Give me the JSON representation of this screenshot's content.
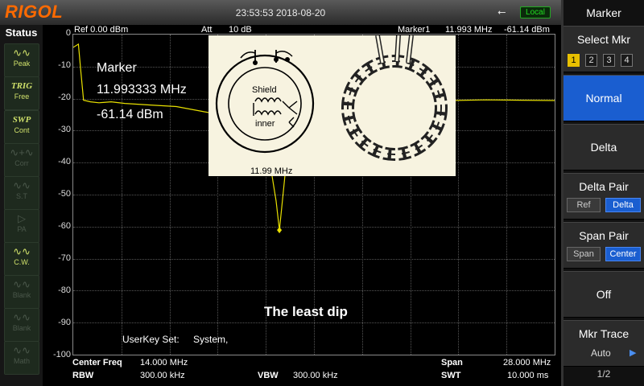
{
  "header": {
    "logo": "RIGOL",
    "datetime": "23:53:53 2018-08-20",
    "remote_status": "Local",
    "usb_symbol": "⭠"
  },
  "status_panel": {
    "title": "Status",
    "buttons": [
      {
        "glyph": "∿∿",
        "label": "Peak",
        "state": "on"
      },
      {
        "glyph": "TRIG",
        "label": "Free",
        "state": "on"
      },
      {
        "glyph": "SWP",
        "label": "Cont",
        "state": "on"
      },
      {
        "glyph": "∿+∿",
        "label": "Corr",
        "state": "off"
      },
      {
        "glyph": "∿∿",
        "label": "S.T",
        "state": "off"
      },
      {
        "glyph": "▷",
        "label": "PA",
        "state": "off"
      },
      {
        "glyph": "∿∿",
        "label": "C.W.",
        "state": "on"
      },
      {
        "glyph": "∿∿",
        "label": "Blank",
        "state": "off"
      },
      {
        "glyph": "∿∿",
        "label": "Blank",
        "state": "off"
      },
      {
        "glyph": "∿∿",
        "label": "Math",
        "state": "off"
      }
    ]
  },
  "trace_header": {
    "ref": "Ref  0.00 dBm",
    "att_label": "Att",
    "att_value": "10 dB",
    "marker_label": "Marker1",
    "marker_freq": "11.993 MHz",
    "marker_amp": "-61.14 dBm"
  },
  "annotation": {
    "marker_title": "Marker",
    "marker_freq": "11.993333 MHz",
    "marker_amp": "-61.14 dBm",
    "overlay_shield": "Shield",
    "overlay_inner": "inner",
    "overlay_freq": "11.99 MHz",
    "caption": "The least dip",
    "userkey_label": "UserKey Set:",
    "userkey_value": "System,"
  },
  "bottom": {
    "center_label": "Center Freq",
    "center_value": "14.000 MHz",
    "rbw_label": "RBW",
    "rbw_value": "300.00 kHz",
    "vbw_label": "VBW",
    "vbw_value": "300.00 kHz",
    "span_label": "Span",
    "span_value": "28.000 MHz",
    "swt_label": "SWT",
    "swt_value": "10.000 ms"
  },
  "side_menu": {
    "title": "Marker",
    "select_label": "Select Mkr",
    "markers": [
      "1",
      "2",
      "3",
      "4"
    ],
    "selected_marker": "1",
    "normal": "Normal",
    "delta": "Delta",
    "delta_pair": "Delta Pair",
    "delta_pair_opts": [
      "Ref",
      "Delta"
    ],
    "span_pair": "Span Pair",
    "span_pair_opts": [
      "Span",
      "Center"
    ],
    "off": "Off",
    "mkr_trace": "Mkr Trace",
    "mkr_trace_value": "Auto",
    "page": "1/2"
  },
  "chart_data": {
    "type": "line",
    "xlabel": "",
    "ylabel": "",
    "xlim": [
      0,
      28
    ],
    "ylim": [
      -100,
      0
    ],
    "y_ticks": [
      "0",
      "-10",
      "-20",
      "-30",
      "-40",
      "-50",
      "-60",
      "-70",
      "-80",
      "-90",
      "-100"
    ],
    "trace_color": "#e8e000",
    "grid": true,
    "x": [
      0,
      0.3,
      0.45,
      0.6,
      1.0,
      1.5,
      2.2,
      3.0,
      4.5,
      6.0,
      7.5,
      9.0,
      10.2,
      11.0,
      11.5,
      11.8,
      11.99,
      12.2,
      12.5,
      13.0,
      14.0,
      16.0,
      18.0,
      20.0,
      22.0,
      24.0,
      26.0,
      28.0
    ],
    "y": [
      -4,
      -3,
      -12,
      -20.5,
      -21,
      -21.3,
      -21,
      -21.5,
      -22,
      -22.5,
      -24,
      -25.5,
      -27,
      -32,
      -42,
      -52,
      -61.1,
      -50,
      -34,
      -26,
      -22,
      -20.8,
      -20.6,
      -20.5,
      -20.6,
      -20.4,
      -20.5,
      -20.6
    ]
  }
}
